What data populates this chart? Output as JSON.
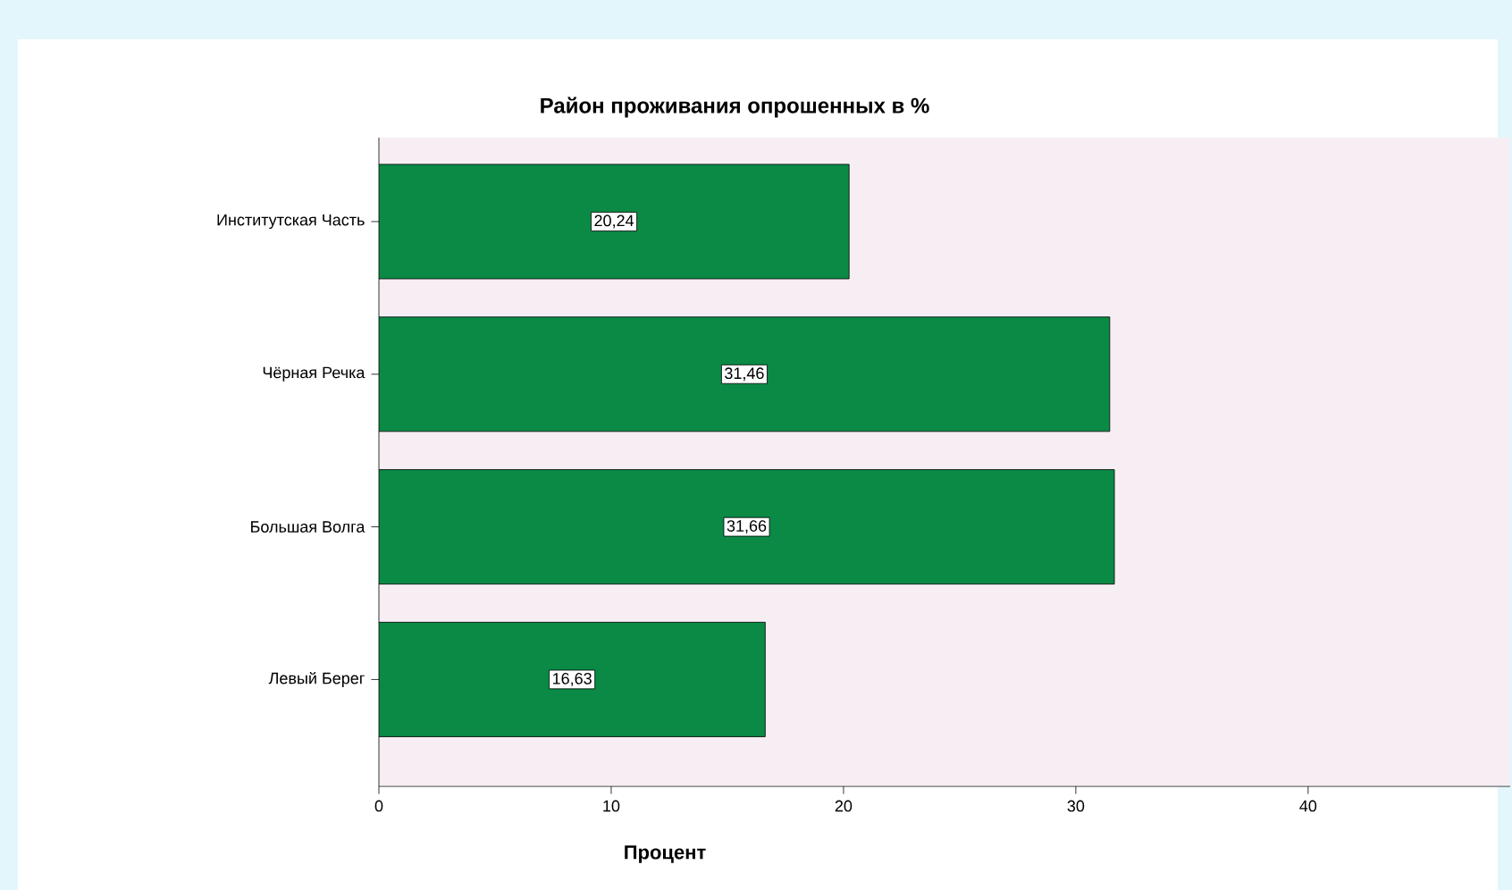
{
  "chart_data": {
    "type": "bar",
    "orientation": "horizontal",
    "title": "Район проживания опрошенных в %",
    "xlabel": "Процент",
    "categories": [
      "Институтская Часть",
      "Чёрная Речка",
      "Большая Волга",
      "Левый Берег"
    ],
    "values": [
      20.24,
      31.46,
      31.66,
      16.63
    ],
    "value_labels": [
      "20,24",
      "31,46",
      "31,66",
      "16,63"
    ],
    "color": "#0a8a45",
    "xlim": [
      0,
      48.7
    ],
    "xticks": [
      0,
      10,
      20,
      30,
      40
    ]
  }
}
